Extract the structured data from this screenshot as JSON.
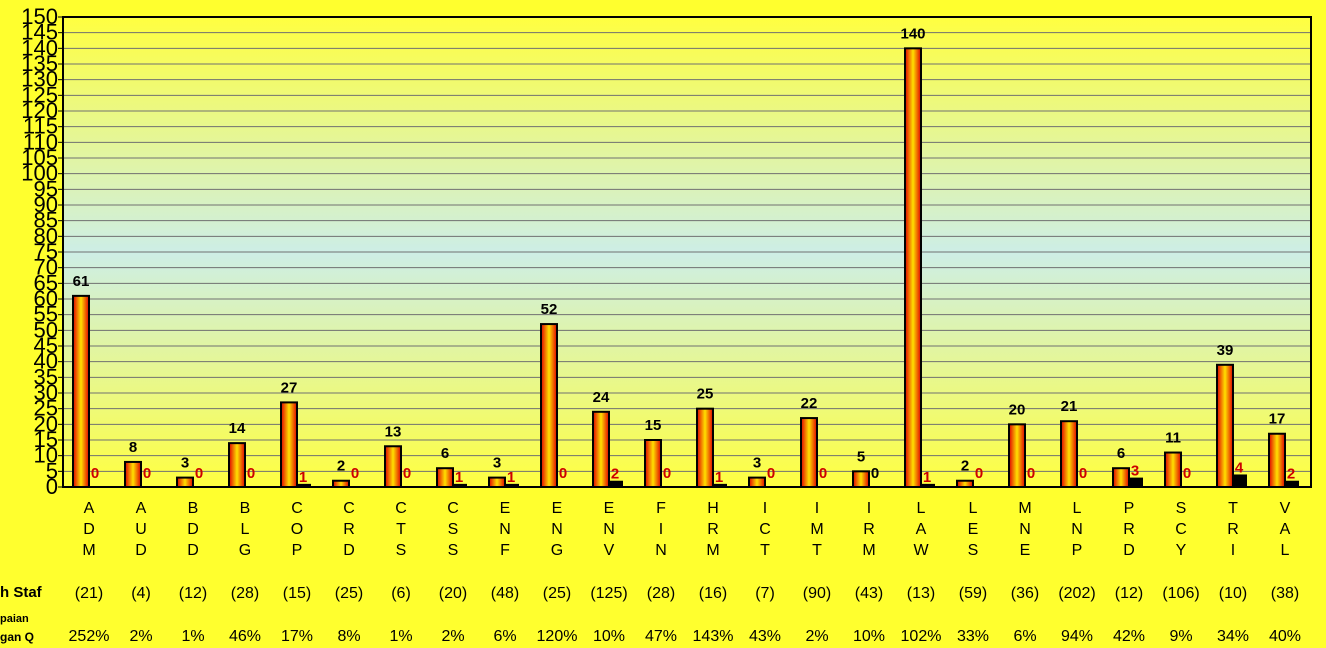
{
  "chart_data": {
    "type": "bar",
    "categories": [
      "ADM",
      "AUD",
      "BDD",
      "BLG",
      "COP",
      "CRD",
      "CTS",
      "CSS",
      "ENF",
      "ENG",
      "ENV",
      "FIN",
      "HRM",
      "ICT",
      "IMT",
      "IRM",
      "LAW",
      "LES",
      "MNE",
      "LNP",
      "PRD",
      "SCY",
      "TRI",
      "VAL"
    ],
    "series": [
      {
        "values": [
          61,
          8,
          3,
          14,
          27,
          2,
          13,
          6,
          3,
          52,
          24,
          15,
          25,
          3,
          22,
          5,
          140,
          2,
          20,
          21,
          6,
          11,
          39,
          17
        ]
      },
      {
        "values": [
          0,
          0,
          0,
          0,
          1,
          0,
          0,
          1,
          1,
          0,
          2,
          0,
          1,
          0,
          0,
          0,
          1,
          0,
          0,
          0,
          3,
          0,
          4,
          2
        ]
      }
    ],
    "series_label_colors": [
      "#000000",
      "#cc0000"
    ],
    "series_fill_colors": [
      "gradient-red-orange-yellow",
      "#000000"
    ],
    "ylim": [
      0,
      150
    ],
    "yticks": [
      0,
      5,
      10,
      15,
      20,
      25,
      30,
      35,
      40,
      45,
      50,
      55,
      60,
      65,
      70,
      75,
      80,
      85,
      90,
      95,
      100,
      105,
      110,
      115,
      120,
      125,
      130,
      135,
      140,
      145,
      150
    ],
    "grid": true,
    "row_labels": [
      "h Staf",
      "paian",
      "gan Q"
    ],
    "staff_counts": [
      "(21)",
      "(4)",
      "(12)",
      "(28)",
      "(15)",
      "(25)",
      "(6)",
      "(20)",
      "(48)",
      "(25)",
      "(125)",
      "(28)",
      "(16)",
      "(7)",
      "(90)",
      "(43)",
      "(13)",
      "(59)",
      "(36)",
      "(202)",
      "(12)",
      "(106)",
      "(10)",
      "(38)"
    ],
    "percentages": [
      "252%",
      "2%",
      "1%",
      "46%",
      "17%",
      "8%",
      "1%",
      "2%",
      "6%",
      "120%",
      "10%",
      "47%",
      "143%",
      "43%",
      "2%",
      "10%",
      "102%",
      "33%",
      "6%",
      "94%",
      "42%",
      "9%",
      "34%",
      "40%"
    ]
  }
}
